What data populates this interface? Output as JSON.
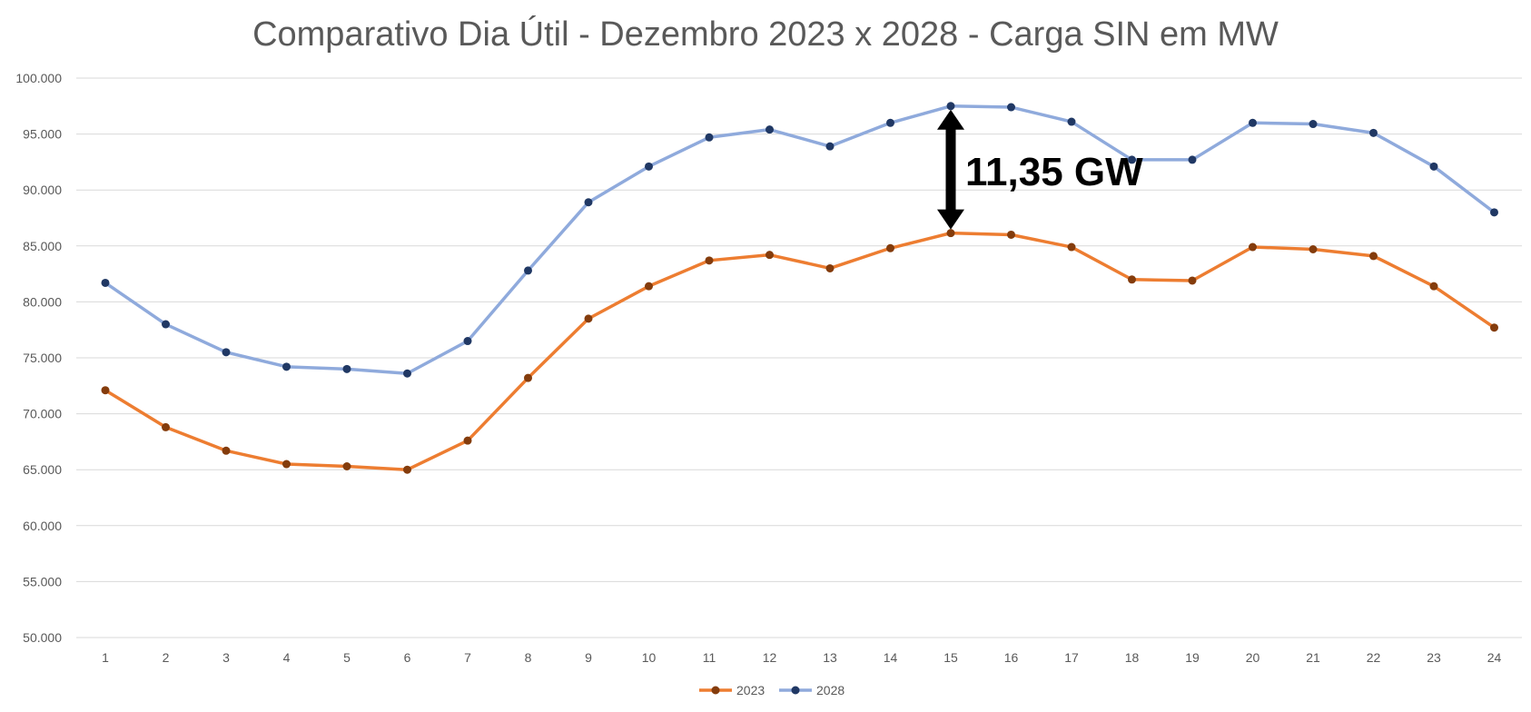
{
  "chart_data": {
    "type": "line",
    "title": "Comparativo Dia Útil - Dezembro 2023 x 2028 - Carga SIN em MW",
    "xlabel": "",
    "ylabel": "",
    "categories": [
      "1",
      "2",
      "3",
      "4",
      "5",
      "6",
      "7",
      "8",
      "9",
      "10",
      "11",
      "12",
      "13",
      "14",
      "15",
      "16",
      "17",
      "18",
      "19",
      "20",
      "21",
      "22",
      "23",
      "24"
    ],
    "ylim": [
      50000,
      100000
    ],
    "yticks": [
      50000,
      55000,
      60000,
      65000,
      70000,
      75000,
      80000,
      85000,
      90000,
      95000,
      100000
    ],
    "ytick_labels": [
      "50.000",
      "55.000",
      "60.000",
      "65.000",
      "70.000",
      "75.000",
      "80.000",
      "85.000",
      "90.000",
      "95.000",
      "100.000"
    ],
    "grid": true,
    "legend_position": "bottom-center",
    "series": [
      {
        "name": "2023",
        "line_color": "#ED7D31",
        "marker_color": "#843C0C",
        "values": [
          72100,
          68800,
          66700,
          65500,
          65300,
          65000,
          67600,
          73200,
          78500,
          81400,
          83700,
          84200,
          83000,
          84800,
          86150,
          86000,
          84900,
          82000,
          81900,
          84900,
          84700,
          84100,
          81400,
          77700
        ]
      },
      {
        "name": "2028",
        "line_color": "#8FAADC",
        "marker_color": "#203864",
        "values": [
          81700,
          78000,
          75500,
          74200,
          74000,
          73600,
          76500,
          82800,
          88900,
          92100,
          94700,
          95400,
          93900,
          96000,
          97500,
          97400,
          96100,
          92700,
          92700,
          96000,
          95900,
          95100,
          92100,
          88000
        ]
      }
    ],
    "annotation": {
      "text": "11,35 GW",
      "x_category": "15",
      "from_value": 86150,
      "to_value": 97500
    }
  }
}
